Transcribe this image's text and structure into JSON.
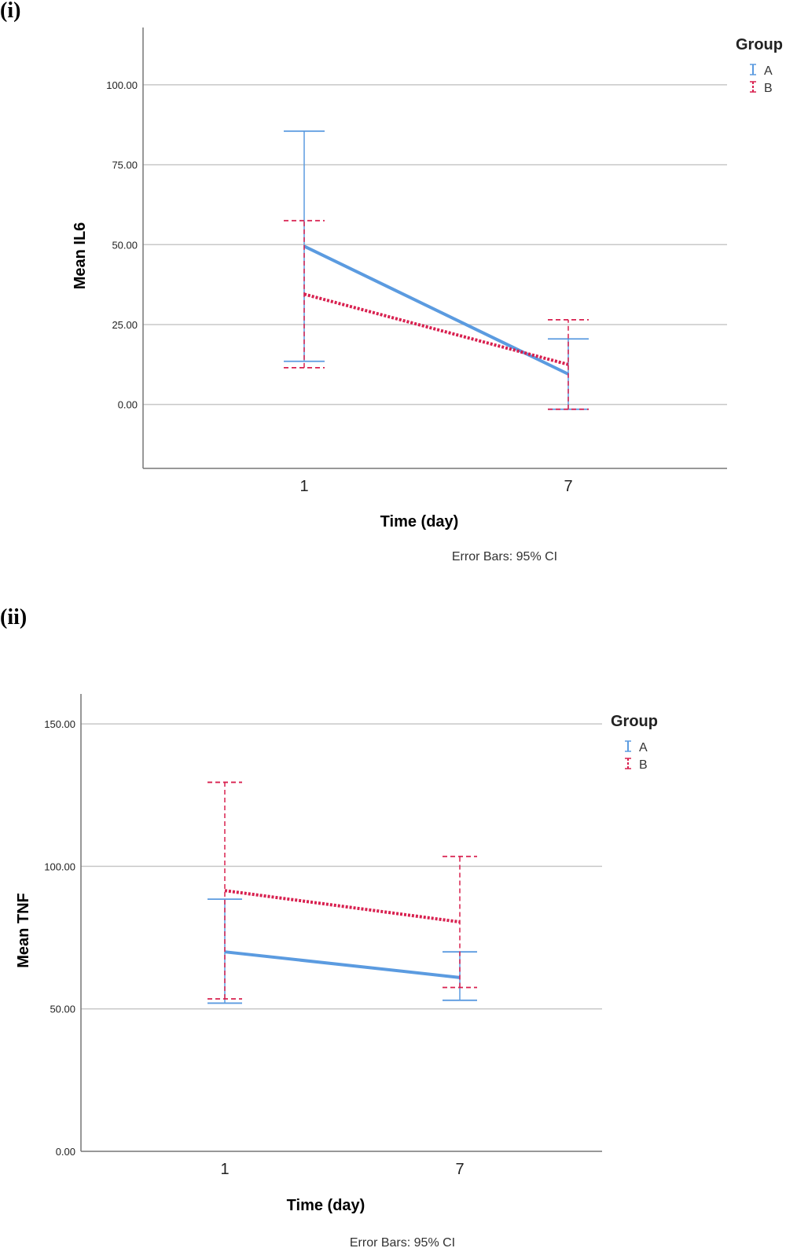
{
  "panels": [
    {
      "label": "(i)"
    },
    {
      "label": "(ii)"
    }
  ],
  "colors": {
    "A": "#5b9be0",
    "B": "#d8204f",
    "grid": "#c8c8c8",
    "axis": "#777777"
  },
  "chart_data": [
    {
      "type": "line",
      "categories": [
        "1",
        "7"
      ],
      "xlabel": "Time (day)",
      "ylabel": "Mean IL6",
      "ylim": [
        -20,
        113
      ],
      "yticks": [
        0,
        25,
        50,
        75,
        100
      ],
      "ytick_labels": [
        "0.00",
        "25.00",
        "50.00",
        "75.00",
        "100.00"
      ],
      "grid": true,
      "legend_title": "Group",
      "legend_position": "top-right",
      "note": "Error Bars: 95% CI",
      "series": [
        {
          "name": "A",
          "style": "solid",
          "values": [
            49.5,
            9.5
          ],
          "ci_low": [
            13.5,
            -1.5
          ],
          "ci_high": [
            85.5,
            20.5
          ]
        },
        {
          "name": "B",
          "style": "dotted",
          "values": [
            34.5,
            12.5
          ],
          "ci_low": [
            11.5,
            -1.5
          ],
          "ci_high": [
            57.5,
            26.5
          ]
        }
      ]
    },
    {
      "type": "line",
      "categories": [
        "1",
        "7"
      ],
      "xlabel": "Time (day)",
      "ylabel": "Mean TNF",
      "ylim": [
        0,
        155
      ],
      "yticks": [
        0,
        50,
        100,
        150
      ],
      "ytick_labels": [
        "0.00",
        "50.00",
        "100.00",
        "150.00"
      ],
      "grid": true,
      "legend_title": "Group",
      "legend_position": "top-right",
      "note": "Error Bars: 95% CI",
      "series": [
        {
          "name": "A",
          "style": "solid",
          "values": [
            70,
            61
          ],
          "ci_low": [
            52,
            53
          ],
          "ci_high": [
            88.5,
            70
          ]
        },
        {
          "name": "B",
          "style": "dotted",
          "values": [
            91.5,
            80.5
          ],
          "ci_low": [
            53.5,
            57.5
          ],
          "ci_high": [
            129.5,
            103.5
          ]
        }
      ]
    }
  ]
}
